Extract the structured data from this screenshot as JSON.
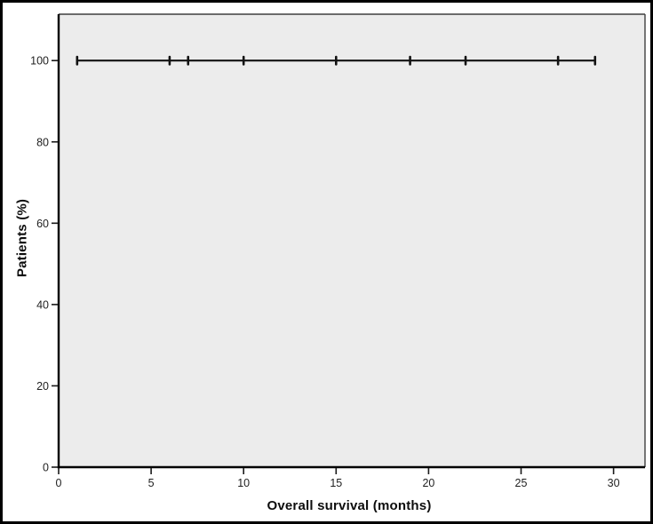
{
  "figure": {
    "background_color": "#ffffff",
    "border_color": "#000000"
  },
  "chart_data": {
    "type": "line",
    "subtype": "kaplan-meier-survival",
    "title": "",
    "xlabel": "Overall survival (months)",
    "ylabel": "Patients (%)",
    "xlim": [
      0,
      31.7
    ],
    "ylim": [
      0,
      111.4
    ],
    "xticks": [
      0,
      5,
      10,
      15,
      20,
      25,
      30
    ],
    "yticks": [
      0,
      20,
      40,
      60,
      80,
      100
    ],
    "grid": false,
    "legend": false,
    "plot_background": "#ececec",
    "axis_color": "#000000",
    "inner_border_color": "#3f3f3f",
    "series": [
      {
        "name": "Overall survival",
        "x": [
          1,
          29
        ],
        "y": [
          100,
          100
        ],
        "censor_marks_x": [
          1,
          6,
          7,
          10,
          15,
          19,
          22,
          27,
          29
        ],
        "censor_y": 100,
        "color": "#121212"
      }
    ]
  }
}
